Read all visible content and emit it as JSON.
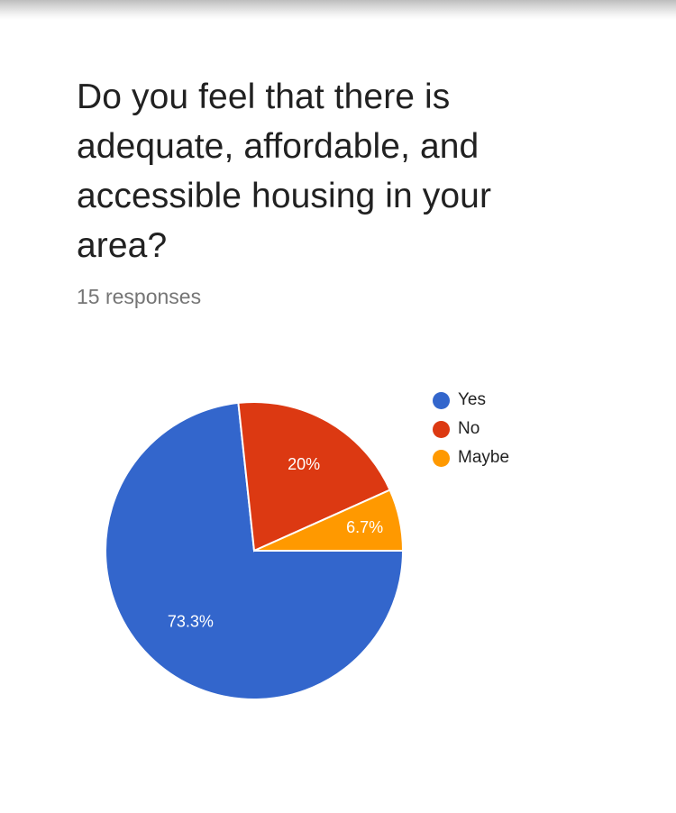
{
  "question": {
    "title": "Do you feel that there is adequate, affordable, and accessible housing in your area?",
    "response_count": "15 responses"
  },
  "chart_data": {
    "type": "pie",
    "title": "",
    "slices": [
      {
        "label": "Yes",
        "value": 73.3,
        "display": "73.3%",
        "color": "#3366CC"
      },
      {
        "label": "No",
        "value": 20.0,
        "display": "20%",
        "color": "#DC3912"
      },
      {
        "label": "Maybe",
        "value": 6.7,
        "display": "6.7%",
        "color": "#FF9900"
      }
    ],
    "legend_placement": "right"
  },
  "legend": {
    "items": [
      {
        "label": "Yes",
        "color": "#3366CC"
      },
      {
        "label": "No",
        "color": "#DC3912"
      },
      {
        "label": "Maybe",
        "color": "#FF9900"
      }
    ]
  }
}
